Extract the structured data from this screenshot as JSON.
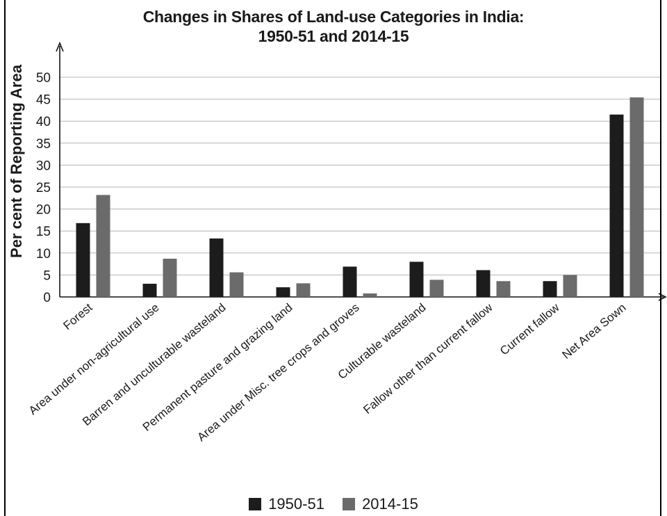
{
  "chart_data": {
    "type": "bar",
    "title_line1": "Changes in Shares of Land-use Categories in India:",
    "title_line2": "1950-51 and 2014-15",
    "ylabel": "Per cent of Reporting Area",
    "xlabel": "",
    "ylim": [
      0,
      50
    ],
    "yticks": [
      0,
      5,
      10,
      15,
      20,
      25,
      30,
      35,
      40,
      45,
      50
    ],
    "grid": true,
    "legend_position": "bottom",
    "categories": [
      "Forest",
      "Area under non-agricultural use",
      "Barren and unculturable wasteland",
      "Permanent pasture and grazing land",
      "Area under Misc. tree crops and groves",
      "Culturable wasteland",
      "Fallow other than current fallow",
      "Current fallow",
      "Net Area Sown"
    ],
    "series": [
      {
        "name": "1950-51",
        "color": "#1c1c1c",
        "values": [
          16.8,
          3.0,
          13.3,
          2.2,
          6.9,
          8.0,
          6.1,
          3.6,
          41.5
        ]
      },
      {
        "name": "2014-15",
        "color": "#6b6b6b",
        "values": [
          23.2,
          8.7,
          5.6,
          3.1,
          0.8,
          3.9,
          3.6,
          5.0,
          45.4
        ]
      }
    ]
  }
}
